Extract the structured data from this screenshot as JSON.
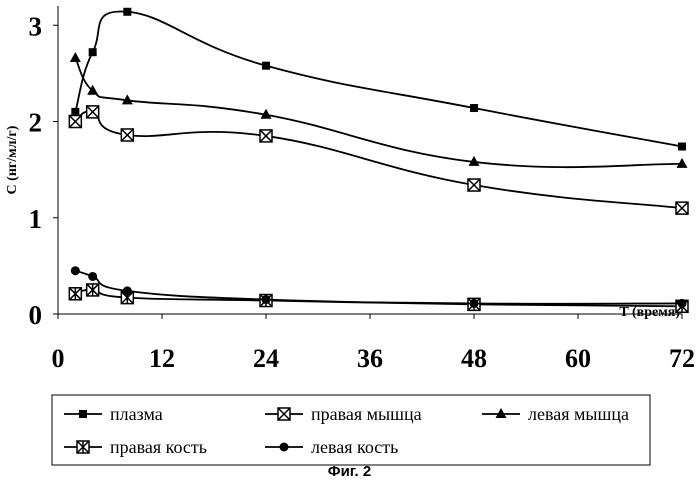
{
  "caption": "Фиг. 2",
  "chart_data": {
    "type": "line",
    "xlabel": "T (время)",
    "ylabel": "С (нг/мл/г)",
    "xlim": [
      0,
      72
    ],
    "ylim": [
      0,
      3.2
    ],
    "xticks": [
      "0",
      "12",
      "24",
      "36",
      "48",
      "60",
      "72"
    ],
    "yticks": [
      "0",
      "1",
      "2",
      "3"
    ],
    "grid": false,
    "legend_position": "bottom",
    "series": [
      {
        "name": "плазма",
        "marker": "square",
        "x": [
          2,
          4,
          8,
          24,
          48,
          72
        ],
        "y": [
          2.1,
          2.72,
          3.14,
          2.58,
          2.14,
          1.74
        ]
      },
      {
        "name": "правая мышца",
        "marker": "boxed-x",
        "x": [
          2,
          4,
          8,
          24,
          48,
          72
        ],
        "y": [
          2.0,
          2.1,
          1.86,
          1.85,
          1.34,
          1.1
        ]
      },
      {
        "name": "левая мышца",
        "marker": "triangle",
        "x": [
          2,
          4,
          8,
          24,
          48,
          72
        ],
        "y": [
          2.66,
          2.32,
          2.22,
          2.07,
          1.58,
          1.56
        ]
      },
      {
        "name": "правая кость",
        "marker": "star-box",
        "x": [
          2,
          4,
          8,
          24,
          48,
          72
        ],
        "y": [
          0.21,
          0.25,
          0.17,
          0.14,
          0.1,
          0.08
        ]
      },
      {
        "name": "левая кость",
        "marker": "circle",
        "x": [
          2,
          4,
          8,
          24,
          48,
          72
        ],
        "y": [
          0.45,
          0.39,
          0.24,
          0.15,
          0.11,
          0.11
        ]
      }
    ]
  }
}
